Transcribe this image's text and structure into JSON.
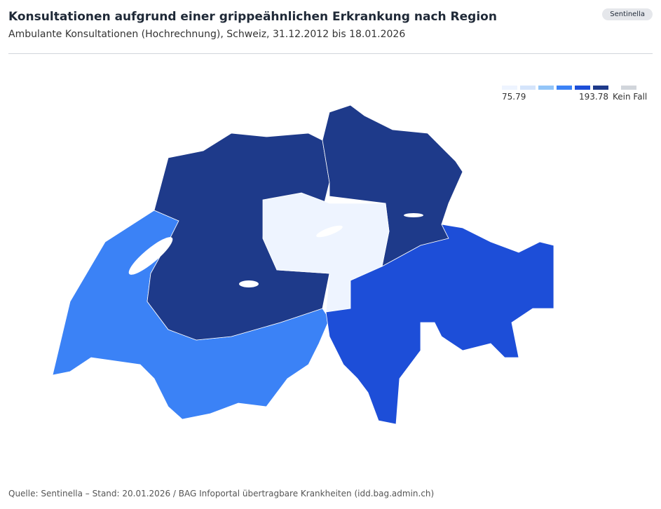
{
  "header": {
    "title": "Konsultationen aufgrund einer grippeähnlichen Erkrankung nach Region",
    "subtitle": "Ambulante Konsultationen (Hochrechnung), Schweiz, 31.12.2012 bis 18.01.2026",
    "badge": "Sentinella"
  },
  "legend": {
    "min_label": "75.79",
    "max_label": "193.78",
    "none_label": "Kein Fall",
    "colors": [
      "#eef4ff",
      "#d4e4fb",
      "#93c5f8",
      "#3b82f6",
      "#1d4ed8",
      "#1e3a8a"
    ],
    "none_color": "#d1d5db"
  },
  "footer": {
    "source": "Quelle: Sentinella – Stand: 20.01.2026 / BAG Infoportal übertragbare Krankheiten (idd.bag.admin.ch)"
  }
}
